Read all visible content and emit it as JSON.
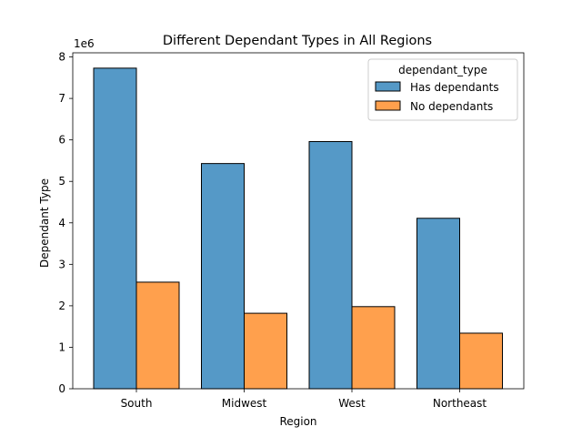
{
  "chart_data": {
    "type": "bar",
    "title": "Different Dependant Types in All Regions",
    "xlabel": "Region",
    "ylabel": "Dependant Type",
    "y_multiplier_label": "1e6",
    "categories": [
      "South",
      "Midwest",
      "West",
      "Northeast"
    ],
    "series": [
      {
        "name": "Has dependants",
        "color": "#5599c7",
        "values": [
          7.73,
          5.43,
          5.96,
          4.11
        ]
      },
      {
        "name": "No dependants",
        "color": "#ffa04d",
        "values": [
          2.57,
          1.82,
          1.98,
          1.34
        ]
      }
    ],
    "y_ticks": [
      "0",
      "1",
      "2",
      "3",
      "4",
      "5",
      "6",
      "7",
      "8"
    ],
    "ylim": [
      0,
      8.1
    ],
    "legend": {
      "title": "dependant_type",
      "placement": "top-right"
    },
    "grid": false
  }
}
